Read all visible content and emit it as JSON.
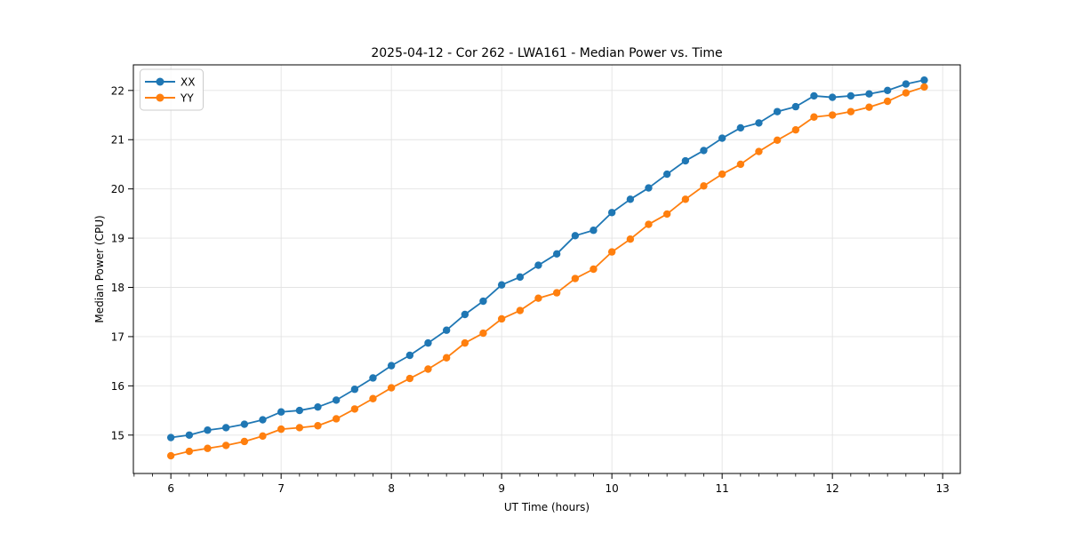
{
  "style": {
    "background": "#ffffff",
    "grid_color": "#e3e3e3",
    "spine_color": "#000000",
    "text_color": "#000000",
    "legend_border_color": "#cccccc",
    "legend_fill": "#ffffff"
  },
  "chart_data": {
    "type": "line",
    "title": "2025-04-12 - Cor 262 - LWA161 - Median Power vs. Time",
    "xlabel": "UT Time (hours)",
    "ylabel": "Median Power (CPU)",
    "xlim": [
      5.66,
      13.16
    ],
    "ylim": [
      14.22,
      22.52
    ],
    "xticks": [
      6,
      7,
      8,
      9,
      10,
      11,
      12,
      13
    ],
    "yticks": [
      15,
      16,
      17,
      18,
      19,
      20,
      21,
      22
    ],
    "x_minor_step_per_hour": 6,
    "grid": true,
    "legend_position": "upper left",
    "x": [
      6.0,
      6.167,
      6.333,
      6.5,
      6.667,
      6.833,
      7.0,
      7.167,
      7.333,
      7.5,
      7.667,
      7.833,
      8.0,
      8.167,
      8.333,
      8.5,
      8.667,
      8.833,
      9.0,
      9.167,
      9.333,
      9.5,
      9.667,
      9.833,
      10.0,
      10.167,
      10.333,
      10.5,
      10.667,
      10.833,
      11.0,
      11.167,
      11.333,
      11.5,
      11.667,
      11.833,
      12.0,
      12.167,
      12.333,
      12.5,
      12.667,
      12.833
    ],
    "series": [
      {
        "name": "XX",
        "color": "#1f77b4",
        "values": [
          14.95,
          15.0,
          15.1,
          15.15,
          15.22,
          15.31,
          15.47,
          15.5,
          15.57,
          15.71,
          15.93,
          16.16,
          16.41,
          16.62,
          16.87,
          17.13,
          17.45,
          17.72,
          18.05,
          18.21,
          18.45,
          18.68,
          19.05,
          19.16,
          19.52,
          19.79,
          20.02,
          20.3,
          20.57,
          20.78,
          21.03,
          21.24,
          21.34,
          21.57,
          21.67,
          21.89,
          21.86,
          21.89,
          21.93,
          22.0,
          22.13,
          22.21
        ]
      },
      {
        "name": "YY",
        "color": "#ff7f0e",
        "values": [
          14.58,
          14.67,
          14.73,
          14.79,
          14.87,
          14.98,
          15.12,
          15.15,
          15.19,
          15.33,
          15.53,
          15.74,
          15.96,
          16.15,
          16.34,
          16.57,
          16.87,
          17.07,
          17.36,
          17.53,
          17.78,
          17.89,
          18.18,
          18.37,
          18.72,
          18.98,
          19.28,
          19.49,
          19.79,
          20.06,
          20.3,
          20.5,
          20.76,
          20.99,
          21.2,
          21.46,
          21.5,
          21.57,
          21.66,
          21.78,
          21.95,
          22.07
        ]
      }
    ]
  }
}
